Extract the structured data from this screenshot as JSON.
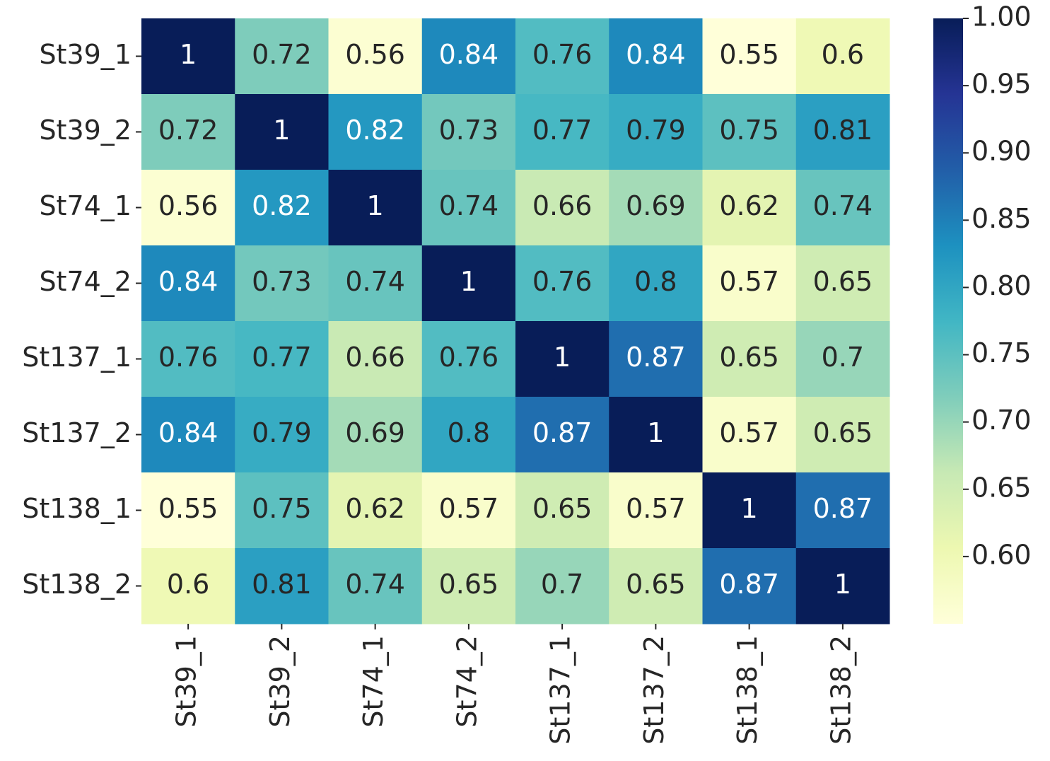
{
  "chart_data": {
    "type": "heatmap",
    "x_categories": [
      "St39_1",
      "St39_2",
      "St74_1",
      "St74_2",
      "St137_1",
      "St137_2",
      "St138_1",
      "St138_2"
    ],
    "y_categories": [
      "St39_1",
      "St39_2",
      "St74_1",
      "St74_2",
      "St137_1",
      "St137_2",
      "St138_1",
      "St138_2"
    ],
    "values": [
      [
        1,
        0.72,
        0.56,
        0.84,
        0.76,
        0.84,
        0.55,
        0.6
      ],
      [
        0.72,
        1,
        0.82,
        0.73,
        0.77,
        0.79,
        0.75,
        0.81
      ],
      [
        0.56,
        0.82,
        1,
        0.74,
        0.66,
        0.69,
        0.62,
        0.74
      ],
      [
        0.84,
        0.73,
        0.74,
        1,
        0.76,
        0.8,
        0.57,
        0.65
      ],
      [
        0.76,
        0.77,
        0.66,
        0.76,
        1,
        0.87,
        0.65,
        0.7
      ],
      [
        0.84,
        0.79,
        0.69,
        0.8,
        0.87,
        1,
        0.57,
        0.65
      ],
      [
        0.55,
        0.75,
        0.62,
        0.57,
        0.65,
        0.57,
        1,
        0.87
      ],
      [
        0.6,
        0.81,
        0.74,
        0.65,
        0.7,
        0.65,
        0.87,
        1
      ]
    ],
    "colormap": [
      "#ffffd9",
      "#edf8b1",
      "#c7e9b4",
      "#7fcdbb",
      "#41b6c4",
      "#1d91c0",
      "#225ea8",
      "#253494",
      "#081d58"
    ],
    "vlim": [
      0.55,
      1
    ],
    "vticks": [
      {
        "value": 0.6,
        "label": "0.60"
      },
      {
        "value": 0.65,
        "label": "0.65"
      },
      {
        "value": 0.7,
        "label": "0.70"
      },
      {
        "value": 0.75,
        "label": "0.75"
      },
      {
        "value": 0.8,
        "label": "0.80"
      },
      {
        "value": 0.85,
        "label": "0.85"
      },
      {
        "value": 0.9,
        "label": "0.90"
      },
      {
        "value": 0.95,
        "label": "0.95"
      },
      {
        "value": 1,
        "label": "1.00"
      }
    ]
  }
}
